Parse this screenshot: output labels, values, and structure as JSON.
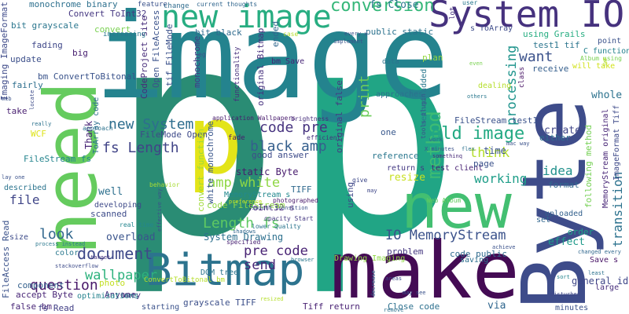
{
  "words": [
    {
      "text": "p",
      "color": "#2a8c74"
    },
    {
      "text": "p",
      "color": "#21a585"
    },
    {
      "text": "image",
      "color": "#24838e"
    },
    {
      "text": "make",
      "color": "#440b54"
    },
    {
      "text": "Byte",
      "color": "#3e4c8a"
    },
    {
      "text": "need",
      "color": "#65cb5e"
    },
    {
      "text": "new",
      "color": "#43bf71"
    },
    {
      "text": "Bitmap",
      "color": "#2c738e"
    },
    {
      "text": "System IO",
      "color": "#46327e"
    },
    {
      "text": "new image",
      "color": "#27ad81"
    },
    {
      "text": "p",
      "color": "#e3e418"
    },
    {
      "text": "conversion",
      "color": "#35b779"
    },
    {
      "text": "method",
      "color": "#3dbc74"
    },
    {
      "text": "old image",
      "color": "#23a983"
    },
    {
      "text": "IO MemoryStream",
      "color": "#3b528b"
    },
    {
      "text": "document",
      "color": "#3e4989"
    },
    {
      "text": "fs Length",
      "color": "#414487"
    },
    {
      "text": "Length fs",
      "color": "#5ec962"
    },
    {
      "text": "black amp",
      "color": "#355f8d"
    },
    {
      "text": "amp white",
      "color": "#8fd744"
    },
    {
      "text": "code pre",
      "color": "#46337f"
    },
    {
      "text": "pre code",
      "color": "#482374"
    },
    {
      "text": "new System",
      "color": "#2e6e8e"
    },
    {
      "text": "print",
      "color": "#6ccd5a"
    },
    {
      "text": "processing",
      "color": "#1f948c"
    },
    {
      "text": "want",
      "color": "#3b528b"
    },
    {
      "text": "think",
      "color": "#b5de2b"
    },
    {
      "text": "working",
      "color": "#1f9e89"
    },
    {
      "text": "idea",
      "color": "#21918c"
    },
    {
      "text": "transition",
      "color": "#2c728e"
    },
    {
      "text": "wallpaper",
      "color": "#2db27d"
    },
    {
      "text": "question",
      "color": "#481769"
    },
    {
      "text": "look",
      "color": "#31678e"
    },
    {
      "text": "send",
      "color": "#482878"
    },
    {
      "text": "file",
      "color": "#404688"
    },
    {
      "text": "fs Close",
      "color": "#2a788e"
    },
    {
      "text": "Convert ToInt32",
      "color": "#453781"
    },
    {
      "text": "monochrome binary",
      "color": "#2d708e"
    },
    {
      "text": "bit grayscale",
      "color": "#2a768e"
    },
    {
      "text": "update",
      "color": "#3c4f8a"
    },
    {
      "text": "fading",
      "color": "#3f4889"
    },
    {
      "text": "big",
      "color": "#482071"
    },
    {
      "text": "bm ConvertToBitonal",
      "color": "#3a538b"
    },
    {
      "text": "fairly",
      "color": "#2e6f8e"
    },
    {
      "text": "take",
      "color": "#481f70"
    },
    {
      "text": "WCF",
      "color": "#dde318"
    },
    {
      "text": "FileStream fs",
      "color": "#25858e"
    },
    {
      "text": "Thank",
      "color": "#482475"
    },
    {
      "text": "ToArray code",
      "color": "#2d708e"
    },
    {
      "text": "CodeProject site",
      "color": "#472c7a"
    },
    {
      "text": "Open FileAccess",
      "color": "#3b528b"
    },
    {
      "text": "FileMode Open",
      "color": "#3e4a89"
    },
    {
      "text": "tif FileMode",
      "color": "#3b518b"
    },
    {
      "text": "convert",
      "color": "#7ad151"
    },
    {
      "text": "increasing",
      "color": "#2a788e"
    },
    {
      "text": "bit black",
      "color": "#2f6b8e"
    },
    {
      "text": "monochrome",
      "color": "#443a83"
    },
    {
      "text": "bm Save",
      "color": "#482777"
    },
    {
      "text": "eg",
      "color": "#3a548c"
    },
    {
      "text": "original Bitmap",
      "color": "#46307e"
    },
    {
      "text": "ended",
      "color": "#31688e"
    },
    {
      "text": "functionality",
      "color": "#472f7d"
    },
    {
      "text": "application Wallpapers",
      "color": "#481b6d"
    },
    {
      "text": "convert function",
      "color": "#a0da39"
    },
    {
      "text": "white monochrome",
      "color": "#39568c"
    },
    {
      "text": "public static",
      "color": "#2c728e"
    },
    {
      "text": "using Grails",
      "color": "#26ad81"
    },
    {
      "text": "test1 tif",
      "color": "#2b758e"
    },
    {
      "text": "point",
      "color": "#3b528b"
    },
    {
      "text": "C function",
      "color": "#26828e"
    },
    {
      "text": "Album using",
      "color": "#7ad151"
    },
    {
      "text": "will take",
      "color": "#d2e21b"
    },
    {
      "text": "receive",
      "color": "#355f8d"
    },
    {
      "text": "plan",
      "color": "#95d840"
    },
    {
      "text": "method added",
      "color": "#2a788e"
    },
    {
      "text": "approaches",
      "color": "#2c728e"
    },
    {
      "text": "dealing",
      "color": "#b5de2b"
    },
    {
      "text": "original false",
      "color": "#453882"
    },
    {
      "text": "FileStream test1",
      "color": "#3b528b"
    },
    {
      "text": "MemoryStream original",
      "color": "#482677"
    },
    {
      "text": "ImageFormat Tiff",
      "color": "#3e4a89"
    },
    {
      "text": "whole",
      "color": "#2c728e"
    },
    {
      "text": "create",
      "color": "#404688"
    },
    {
      "text": "either",
      "color": "#2f6c8e"
    },
    {
      "text": "time",
      "color": "#3a548c"
    },
    {
      "text": "following method",
      "color": "#75d054"
    },
    {
      "text": "format",
      "color": "#31688e"
    },
    {
      "text": "reference",
      "color": "#2a778e"
    },
    {
      "text": "return s",
      "color": "#443983"
    },
    {
      "text": "test client",
      "color": "#482173"
    },
    {
      "text": "resize",
      "color": "#c8e020"
    },
    {
      "text": "page",
      "color": "#3b518b"
    },
    {
      "text": "uploaded",
      "color": "#34618d"
    },
    {
      "text": "set",
      "color": "#31668e"
    },
    {
      "text": "order",
      "color": "#1fa287"
    },
    {
      "text": "effect",
      "color": "#1f9a8a"
    },
    {
      "text": "general idea",
      "color": "#3f4788"
    },
    {
      "text": "Save s",
      "color": "#481467"
    },
    {
      "text": "large",
      "color": "#472e7c"
    },
    {
      "text": "via",
      "color": "#31678e"
    },
    {
      "text": "minutes",
      "color": "#3b528b"
    },
    {
      "text": "Close code",
      "color": "#2d708e"
    },
    {
      "text": "Tiff return",
      "color": "#482173"
    },
    {
      "text": "Drawing Imaging",
      "color": "#8fd744"
    },
    {
      "text": "problem",
      "color": "#453781"
    },
    {
      "text": "code public",
      "color": "#2f6b8e"
    },
    {
      "text": "saving",
      "color": "#2d708e"
    },
    {
      "text": "using",
      "color": "#3f4889"
    },
    {
      "text": "TIFF",
      "color": "#306a8e"
    },
    {
      "text": "MemoryStream s",
      "color": "#23898e"
    },
    {
      "text": "ToInt32 s",
      "color": "#482979"
    },
    {
      "text": "System Drawing",
      "color": "#2d708e"
    },
    {
      "text": "overload",
      "color": "#3a548c"
    },
    {
      "text": "DOM tree",
      "color": "#2b748e"
    },
    {
      "text": "ConvertToBitonal bm",
      "color": "#b5de2b"
    },
    {
      "text": "grayscale TIFF",
      "color": "#3c4f8a"
    },
    {
      "text": "code FileStream",
      "color": "#8fd744"
    },
    {
      "text": "static Byte",
      "color": "#481c6e"
    },
    {
      "text": "good answer",
      "color": "#3e4c8a"
    },
    {
      "text": "fade",
      "color": "#481b6d"
    },
    {
      "text": "one",
      "color": "#38588c"
    },
    {
      "text": "FileAccess Read",
      "color": "#3b528b"
    },
    {
      "text": "accept Byte",
      "color": "#482576"
    },
    {
      "text": "false bm",
      "color": "#482677"
    },
    {
      "text": "fs Read",
      "color": "#424086"
    },
    {
      "text": "component",
      "color": "#34618d"
    },
    {
      "text": "color",
      "color": "#2a788e"
    },
    {
      "text": "Anyone",
      "color": "#46337f"
    },
    {
      "text": "photo",
      "color": "#c2df23"
    },
    {
      "text": "developing",
      "color": "#3e4a89"
    },
    {
      "text": "scanned",
      "color": "#3e4c8a"
    },
    {
      "text": "well",
      "color": "#2d708e"
    },
    {
      "text": "starting",
      "color": "#3b528b"
    },
    {
      "text": "vary",
      "color": "#46327e"
    },
    {
      "text": "optimizations",
      "color": "#25838e"
    },
    {
      "text": "described",
      "color": "#2b748e"
    },
    {
      "text": "size",
      "color": "#3e4c8a"
    },
    {
      "text": "real time",
      "color": "#24868e"
    },
    {
      "text": "lower quality",
      "color": "#2b758e"
    },
    {
      "text": "opacity Start",
      "color": "#453882"
    },
    {
      "text": "photographed",
      "color": "#48186a"
    },
    {
      "text": "Web Album",
      "color": "#63cb5f"
    },
    {
      "text": "current thoughts",
      "color": "#31668e"
    },
    {
      "text": "feature",
      "color": "#3b528b"
    },
    {
      "text": "change",
      "color": "#2f6c8e"
    },
    {
      "text": "user",
      "color": "#2a788e"
    },
    {
      "text": "lot",
      "color": "#46327e"
    },
    {
      "text": "s ToArray",
      "color": "#3e4c8a"
    },
    {
      "text": "case",
      "color": "#b5de2b"
    },
    {
      "text": "every x",
      "color": "#3b528b"
    },
    {
      "text": "data",
      "color": "#2c738e"
    },
    {
      "text": "implement",
      "color": "#3a548c"
    },
    {
      "text": "class",
      "color": "#471365"
    },
    {
      "text": "even",
      "color": "#7ad151"
    },
    {
      "text": "others",
      "color": "#2a788e"
    },
    {
      "text": "tools plugin",
      "color": "#3b528b"
    },
    {
      "text": "brightness",
      "color": "#472e7c"
    },
    {
      "text": "work",
      "color": "#31688e"
    },
    {
      "text": "efficient",
      "color": "#46327e"
    },
    {
      "text": "flex",
      "color": "#2c728e"
    },
    {
      "text": "X minutes",
      "color": "#3b528b"
    },
    {
      "text": "somethinq",
      "color": "#482979"
    },
    {
      "text": "mac way",
      "color": "#3b528b"
    },
    {
      "text": "give",
      "color": "#3e4989"
    },
    {
      "text": "may",
      "color": "#3f4788"
    },
    {
      "text": "specified",
      "color": "#482173"
    },
    {
      "text": "behavior",
      "color": "#a8db34"
    },
    {
      "text": "approach",
      "color": "#2c728e"
    },
    {
      "text": "shadows",
      "color": "#31688e"
    },
    {
      "text": "effective way",
      "color": "#3b528b"
    },
    {
      "text": "process instead",
      "color": "#2a788e"
    },
    {
      "text": "stackoverflow",
      "color": "#3e4c8a"
    },
    {
      "text": "achieve",
      "color": "#3b528b"
    },
    {
      "text": "least",
      "color": "#2c728e"
    },
    {
      "text": "sort",
      "color": "#24868e"
    },
    {
      "text": "areas",
      "color": "#3e4c8a"
    },
    {
      "text": "remove",
      "color": "#2d708e"
    },
    {
      "text": "may see",
      "color": "#3b528b"
    },
    {
      "text": "decrease",
      "color": "#31678e"
    },
    {
      "text": "resized",
      "color": "#b5de2b"
    },
    {
      "text": "target",
      "color": "#46327e"
    },
    {
      "text": "smooth transition",
      "color": "#3b528b"
    },
    {
      "text": "browser",
      "color": "#2a788e"
    },
    {
      "text": "preference",
      "color": "#c8e020"
    },
    {
      "text": "Web",
      "color": "#3b528b"
    },
    {
      "text": "locate",
      "color": "#3e4c8a"
    },
    {
      "text": "really",
      "color": "#2c728e"
    },
    {
      "text": "lay one",
      "color": "#3b528b"
    },
    {
      "text": "SWF",
      "color": "#b5de2b"
    },
    {
      "text": "disturbed",
      "color": "#3f4788"
    },
    {
      "text": "changed every",
      "color": "#31688e"
    },
    {
      "text": "Imaging ImageFormat",
      "color": "#3e4a89"
    }
  ]
}
